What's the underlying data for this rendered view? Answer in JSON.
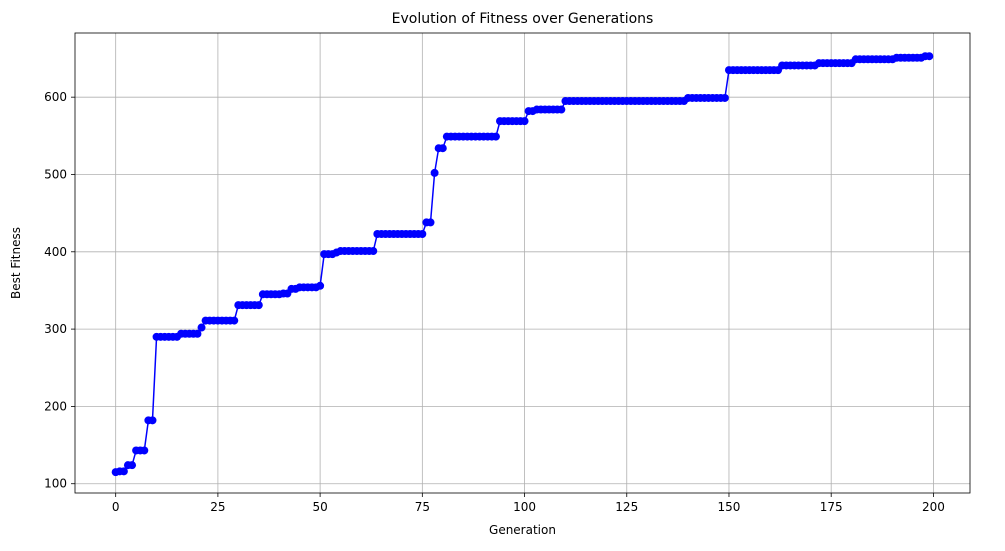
{
  "chart_data": {
    "type": "line",
    "title": "Evolution of Fitness over Generations",
    "xlabel": "Generation",
    "ylabel": "Best Fitness",
    "xlim": [
      -9.95,
      208.95
    ],
    "ylim": [
      88,
      683
    ],
    "xticks": [
      0,
      25,
      50,
      75,
      100,
      125,
      150,
      175,
      200
    ],
    "yticks": [
      100,
      200,
      300,
      400,
      500,
      600
    ],
    "grid": true,
    "colors": {
      "line": "#0000ff",
      "marker": "#0000ff",
      "grid": "#b0b0b0",
      "axes": "#000000"
    },
    "marker": "circle",
    "series": [
      {
        "x": [
          0,
          1,
          2,
          3,
          4,
          5,
          6,
          7,
          8,
          9,
          10,
          11,
          12,
          13,
          14,
          15,
          16,
          17,
          18,
          19,
          20,
          21,
          22,
          23,
          24,
          25,
          26,
          27,
          28,
          29,
          30,
          31,
          32,
          33,
          34,
          35,
          36,
          37,
          38,
          39,
          40,
          41,
          42,
          43,
          44,
          45,
          46,
          47,
          48,
          49,
          50,
          51,
          52,
          53,
          54,
          55,
          56,
          57,
          58,
          59,
          60,
          61,
          62,
          63,
          64,
          65,
          66,
          67,
          68,
          69,
          70,
          71,
          72,
          73,
          74,
          75,
          76,
          77,
          78,
          79,
          80,
          81,
          82,
          83,
          84,
          85,
          86,
          87,
          88,
          89,
          90,
          91,
          92,
          93,
          94,
          95,
          96,
          97,
          98,
          99,
          100,
          101,
          102,
          103,
          104,
          105,
          106,
          107,
          108,
          109,
          110,
          111,
          112,
          113,
          114,
          115,
          116,
          117,
          118,
          119,
          120,
          121,
          122,
          123,
          124,
          125,
          126,
          127,
          128,
          129,
          130,
          131,
          132,
          133,
          134,
          135,
          136,
          137,
          138,
          139,
          140,
          141,
          142,
          143,
          144,
          145,
          146,
          147,
          148,
          149,
          150,
          151,
          152,
          153,
          154,
          155,
          156,
          157,
          158,
          159,
          160,
          161,
          162,
          163,
          164,
          165,
          166,
          167,
          168,
          169,
          170,
          171,
          172,
          173,
          174,
          175,
          176,
          177,
          178,
          179,
          180,
          181,
          182,
          183,
          184,
          185,
          186,
          187,
          188,
          189,
          190,
          191,
          192,
          193,
          194,
          195,
          196,
          197,
          198,
          199
        ],
        "y": [
          115,
          116,
          116,
          124,
          124,
          143,
          143,
          143,
          182,
          182,
          290,
          290,
          290,
          290,
          290,
          290,
          294,
          294,
          294,
          294,
          294,
          302,
          311,
          311,
          311,
          311,
          311,
          311,
          311,
          311,
          331,
          331,
          331,
          331,
          331,
          331,
          345,
          345,
          345,
          345,
          345,
          346,
          346,
          352,
          352,
          354,
          354,
          354,
          354,
          354,
          356,
          397,
          397,
          397,
          399,
          401,
          401,
          401,
          401,
          401,
          401,
          401,
          401,
          401,
          423,
          423,
          423,
          423,
          423,
          423,
          423,
          423,
          423,
          423,
          423,
          423,
          438,
          438,
          502,
          534,
          534,
          549,
          549,
          549,
          549,
          549,
          549,
          549,
          549,
          549,
          549,
          549,
          549,
          549,
          569,
          569,
          569,
          569,
          569,
          569,
          569,
          582,
          582,
          584,
          584,
          584,
          584,
          584,
          584,
          584,
          595,
          595,
          595,
          595,
          595,
          595,
          595,
          595,
          595,
          595,
          595,
          595,
          595,
          595,
          595,
          595,
          595,
          595,
          595,
          595,
          595,
          595,
          595,
          595,
          595,
          595,
          595,
          595,
          595,
          595,
          599,
          599,
          599,
          599,
          599,
          599,
          599,
          599,
          599,
          599,
          635,
          635,
          635,
          635,
          635,
          635,
          635,
          635,
          635,
          635,
          635,
          635,
          635,
          641,
          641,
          641,
          641,
          641,
          641,
          641,
          641,
          641,
          644,
          644,
          644,
          644,
          644,
          644,
          644,
          644,
          644,
          649,
          649,
          649,
          649,
          649,
          649,
          649,
          649,
          649,
          649,
          651,
          651,
          651,
          651,
          651,
          651,
          651,
          653,
          653
        ]
      }
    ]
  }
}
